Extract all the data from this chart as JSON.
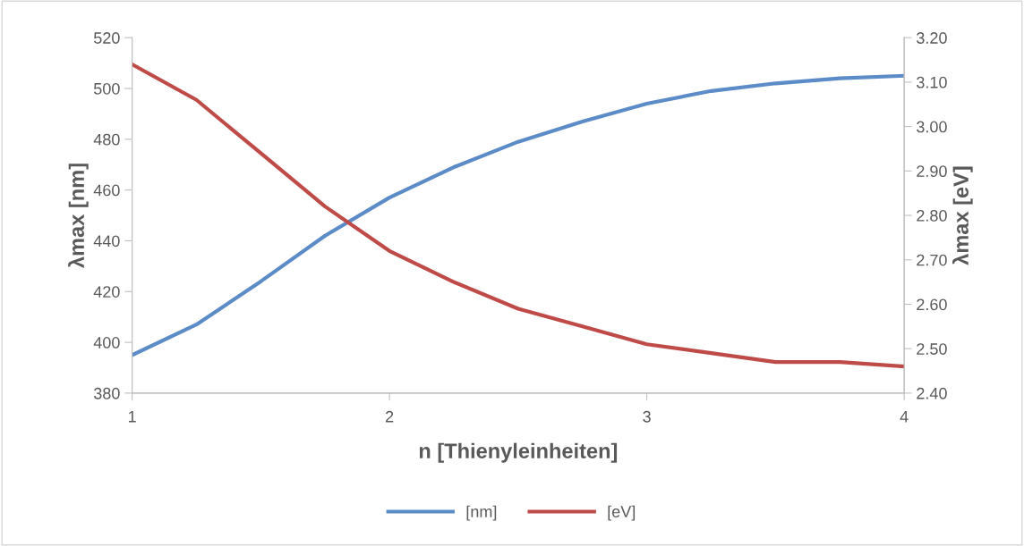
{
  "chart_data": {
    "type": "line",
    "xlabel": "n [Thienyleinheiten]",
    "ylabel": "λmax [nm]",
    "y2label": "λmax [eV]",
    "x": [
      1,
      1.25,
      1.5,
      1.75,
      2,
      2.25,
      2.5,
      2.75,
      3,
      3.25,
      3.5,
      3.75,
      4
    ],
    "xlim": [
      1,
      4
    ],
    "xticks": [
      1,
      2,
      3,
      4
    ],
    "ylim": [
      380,
      520
    ],
    "yticks": [
      380,
      400,
      420,
      440,
      460,
      480,
      500,
      520
    ],
    "y2lim": [
      2.4,
      3.2
    ],
    "y2ticks": [
      {
        "value": 2.4,
        "label": "2.40"
      },
      {
        "value": 2.5,
        "label": "2.50"
      },
      {
        "value": 2.6,
        "label": "2.60"
      },
      {
        "value": 2.7,
        "label": "2.70"
      },
      {
        "value": 2.8,
        "label": "2.80"
      },
      {
        "value": 2.9,
        "label": "2.90"
      },
      {
        "value": 3.0,
        "label": "3.00"
      },
      {
        "value": 3.1,
        "label": "3.10"
      },
      {
        "value": 3.2,
        "label": "3.20"
      }
    ],
    "series": [
      {
        "name": "[nm]",
        "color": "#5b8cc8",
        "values": [
          395,
          407,
          424,
          442,
          457,
          469,
          479,
          487,
          494,
          499,
          502,
          504,
          505
        ]
      },
      {
        "name": "[eV]",
        "color": "#be4b48",
        "values": [
          3.14,
          3.06,
          2.94,
          2.82,
          2.72,
          2.65,
          2.59,
          2.55,
          2.51,
          2.49,
          2.47,
          2.47,
          2.46
        ],
        "axis": "y2"
      }
    ],
    "legend": "bottom",
    "grid": false,
    "marker": "none",
    "line_style": "solid"
  }
}
